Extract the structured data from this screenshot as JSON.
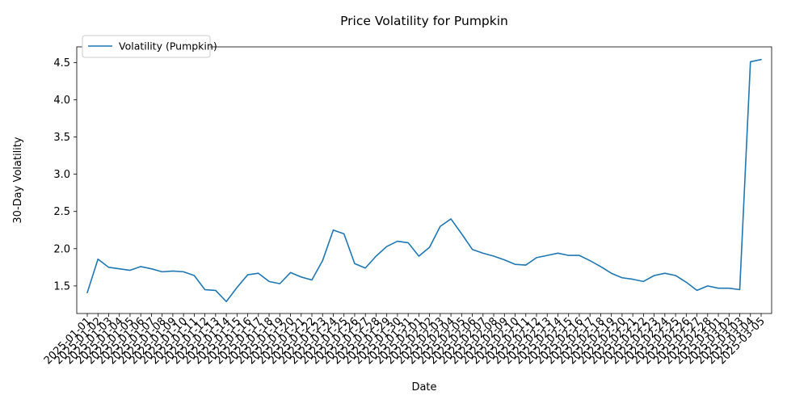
{
  "chart_data": {
    "type": "line",
    "title": "Price Volatility for Pumpkin",
    "xlabel": "Date",
    "ylabel": "30-Day Volatility",
    "ylim": [
      1.13,
      4.71
    ],
    "yticks": [
      "1.5",
      "2.0",
      "2.5",
      "3.0",
      "3.5",
      "4.0",
      "4.5"
    ],
    "grid": false,
    "legend_position": "top-left",
    "line_color": "#1f77b4",
    "x": [
      "2025-01-01",
      "2025-01-02",
      "2025-01-03",
      "2025-01-04",
      "2025-01-05",
      "2025-01-06",
      "2025-01-07",
      "2025-01-08",
      "2025-01-09",
      "2025-01-10",
      "2025-01-11",
      "2025-01-12",
      "2025-01-13",
      "2025-01-14",
      "2025-01-15",
      "2025-01-16",
      "2025-01-17",
      "2025-01-18",
      "2025-01-19",
      "2025-01-20",
      "2025-01-21",
      "2025-01-22",
      "2025-01-23",
      "2025-01-24",
      "2025-01-25",
      "2025-01-26",
      "2025-01-27",
      "2025-01-28",
      "2025-01-29",
      "2025-01-30",
      "2025-01-31",
      "2025-02-01",
      "2025-02-02",
      "2025-02-03",
      "2025-02-04",
      "2025-02-05",
      "2025-02-06",
      "2025-02-07",
      "2025-02-08",
      "2025-02-09",
      "2025-02-10",
      "2025-02-11",
      "2025-02-12",
      "2025-02-13",
      "2025-02-14",
      "2025-02-15",
      "2025-02-16",
      "2025-02-17",
      "2025-02-18",
      "2025-02-19",
      "2025-02-20",
      "2025-02-21",
      "2025-02-22",
      "2025-02-23",
      "2025-02-24",
      "2025-02-25",
      "2025-02-26",
      "2025-02-27",
      "2025-02-28",
      "2025-03-01",
      "2025-03-02",
      "2025-03-03",
      "2025-03-04",
      "2025-03-05"
    ],
    "series": [
      {
        "name": "Volatility (Pumpkin)",
        "values": [
          1.41,
          1.86,
          1.75,
          1.73,
          1.71,
          1.76,
          1.73,
          1.69,
          1.7,
          1.69,
          1.64,
          1.45,
          1.44,
          1.29,
          1.48,
          1.65,
          1.67,
          1.56,
          1.53,
          1.68,
          1.62,
          1.58,
          1.84,
          2.25,
          2.2,
          1.8,
          1.74,
          1.9,
          2.03,
          2.1,
          2.08,
          1.9,
          2.02,
          2.3,
          2.4,
          2.2,
          1.99,
          1.94,
          1.9,
          1.85,
          1.79,
          1.78,
          1.88,
          1.91,
          1.94,
          1.91,
          1.91,
          1.84,
          1.76,
          1.67,
          1.61,
          1.59,
          1.56,
          1.64,
          1.67,
          1.64,
          1.55,
          1.44,
          1.5,
          1.47,
          1.47,
          1.45,
          4.51,
          4.54
        ]
      }
    ]
  }
}
